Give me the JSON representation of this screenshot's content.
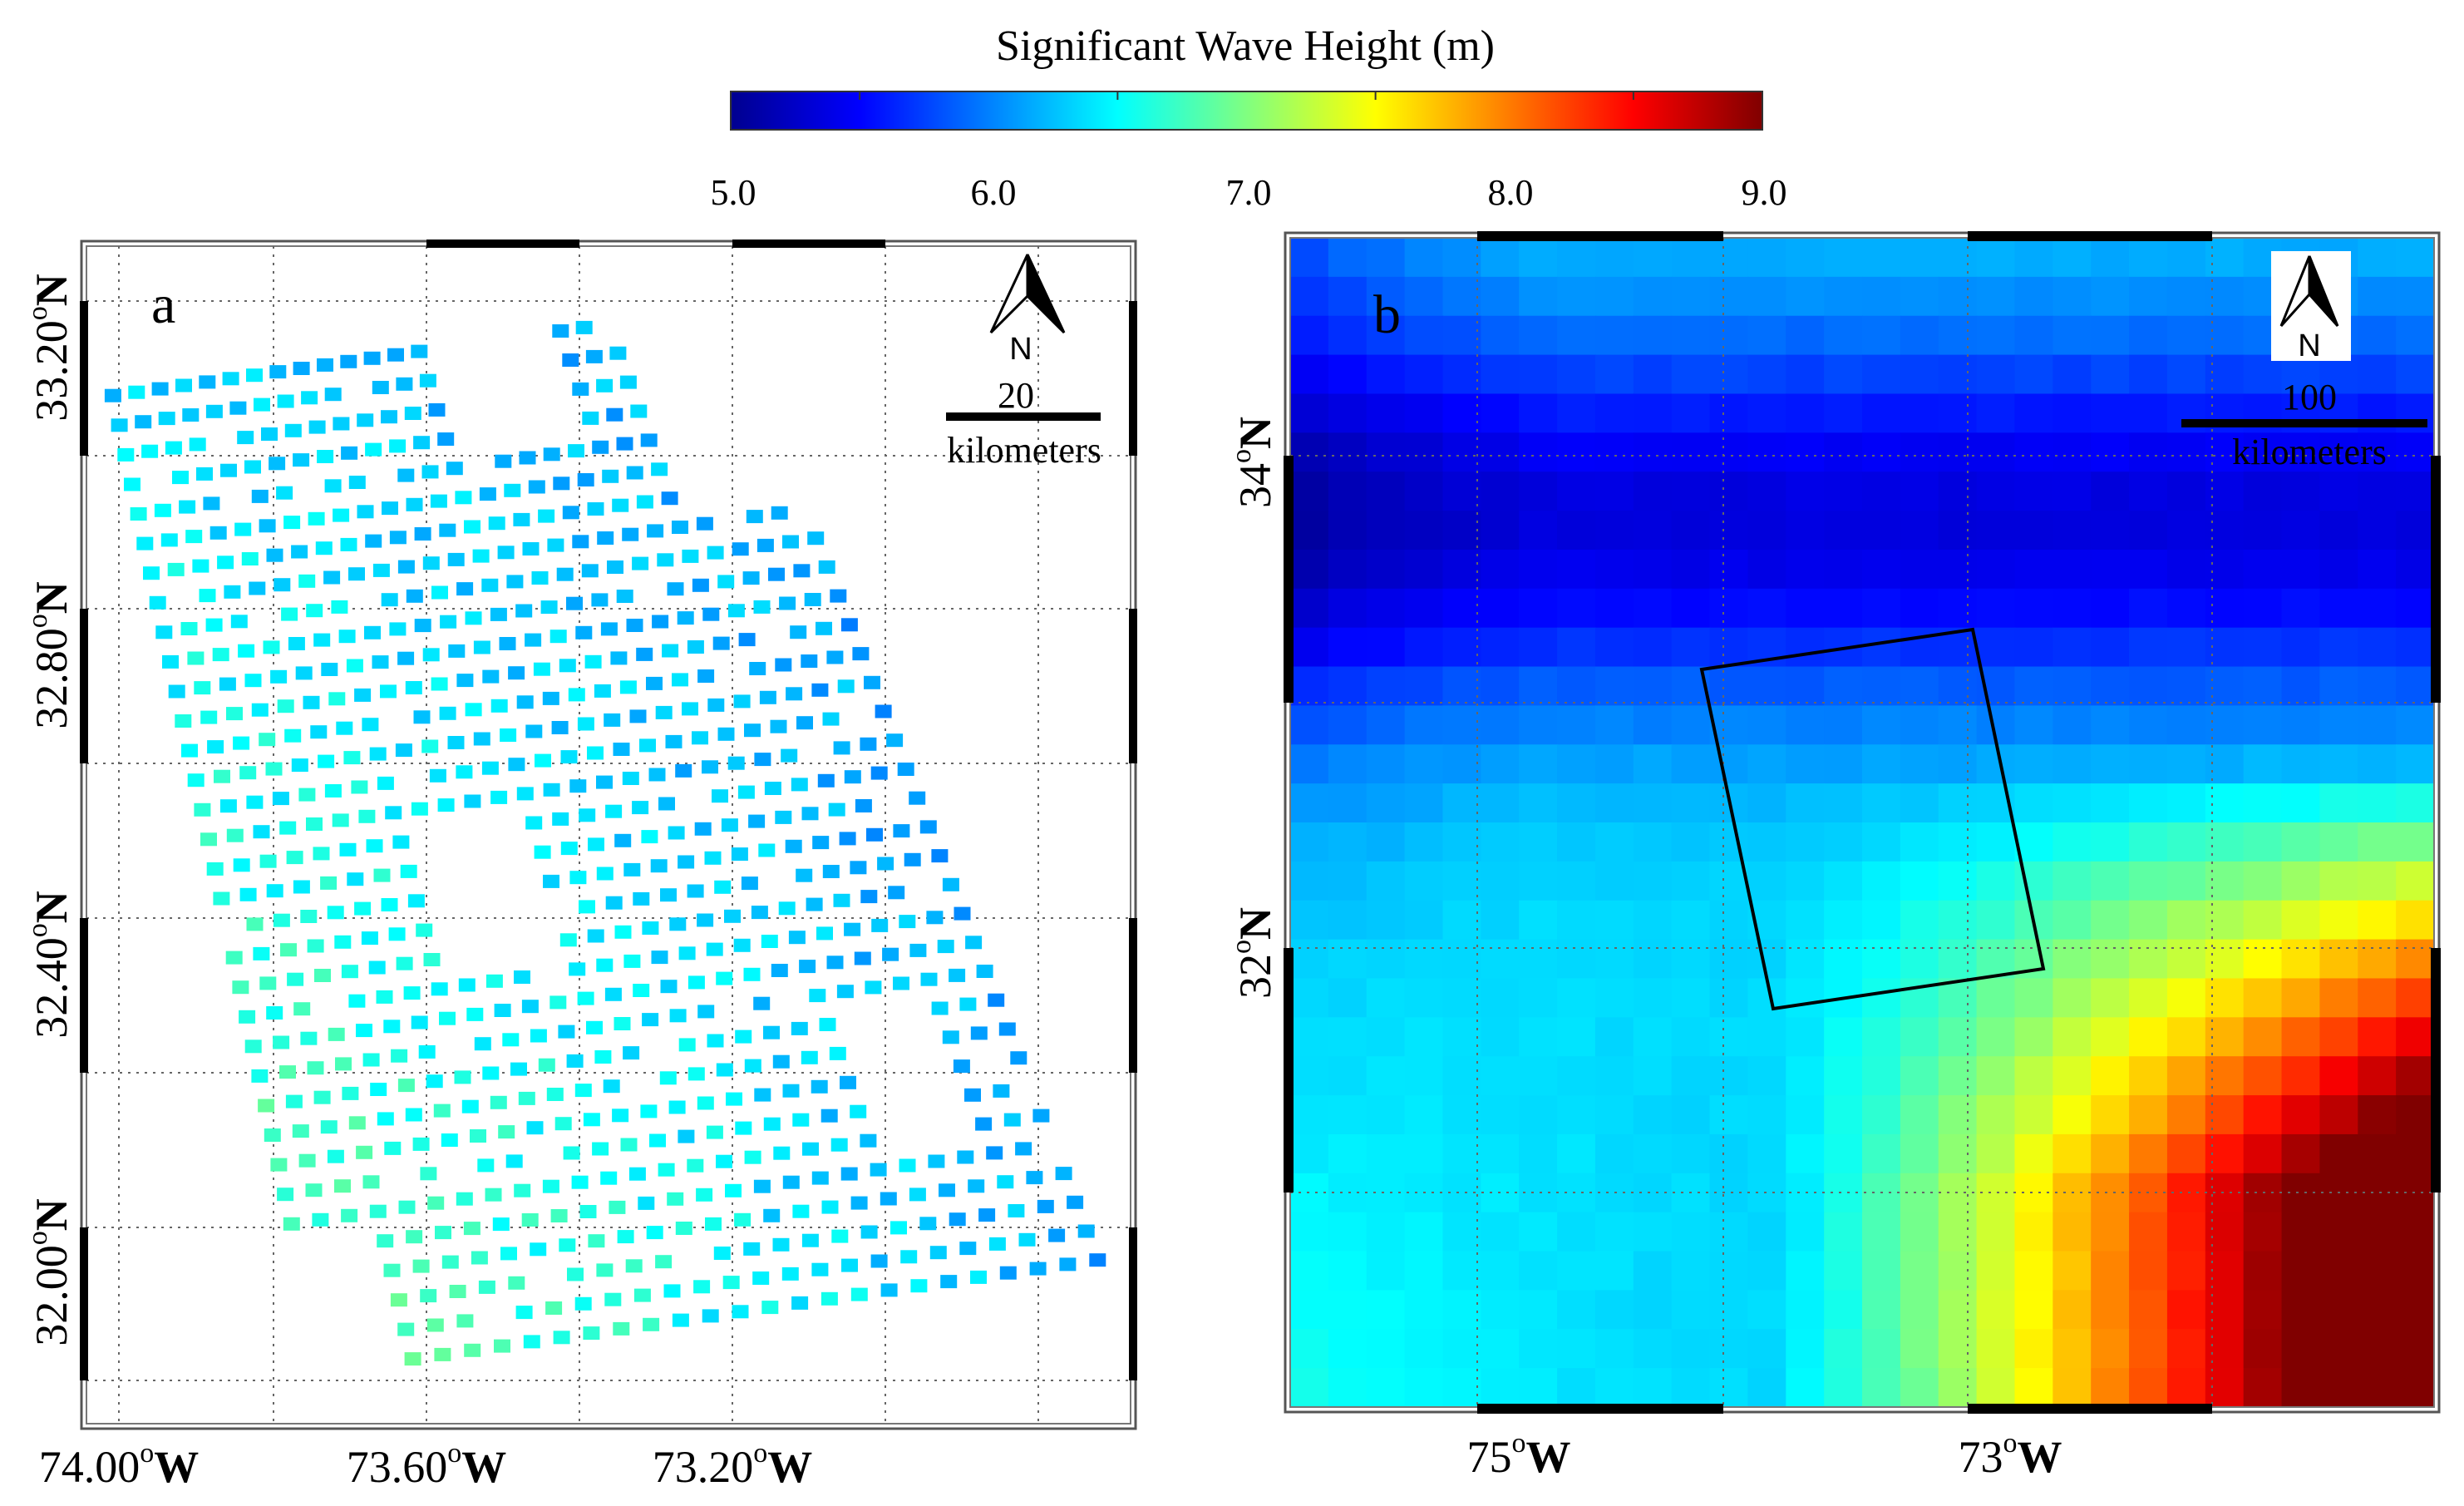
{
  "colorbar": {
    "title": "Significant Wave Height (m)",
    "ticks": [
      "5.0",
      "6.0",
      "7.0",
      "8.0",
      "9.0"
    ],
    "range": [
      5.0,
      9.0
    ],
    "colors": [
      "#00008f",
      "#0000ff",
      "#0080ff",
      "#00ffff",
      "#80ff80",
      "#ffff00",
      "#ff8000",
      "#ff0000",
      "#800000"
    ]
  },
  "panel_a": {
    "label": "a",
    "lon_ticks": [
      {
        "deg": "74.00",
        "sup": "o",
        "hem": "W"
      },
      {
        "deg": "73.60",
        "sup": "o",
        "hem": "W"
      },
      {
        "deg": "73.20",
        "sup": "o",
        "hem": "W"
      }
    ],
    "lat_ticks": [
      {
        "deg": "33.20",
        "sup": "o",
        "hem": "N"
      },
      {
        "deg": "32.80",
        "sup": "o",
        "hem": "N"
      },
      {
        "deg": "32.40",
        "sup": "o",
        "hem": "N"
      },
      {
        "deg": "32.00",
        "sup": "o",
        "hem": "N"
      }
    ],
    "north_label": "N",
    "scale_value": "20",
    "scale_unit": "kilometers"
  },
  "panel_b": {
    "label": "b",
    "lon_ticks": [
      {
        "deg": "75",
        "sup": "o",
        "hem": "W"
      },
      {
        "deg": "73",
        "sup": "o",
        "hem": "W"
      }
    ],
    "lat_ticks": [
      {
        "deg": "34",
        "sup": "o",
        "hem": "N"
      },
      {
        "deg": "32",
        "sup": "o",
        "hem": "N"
      }
    ],
    "north_label": "N",
    "scale_value": "100",
    "scale_unit": "kilometers"
  }
}
